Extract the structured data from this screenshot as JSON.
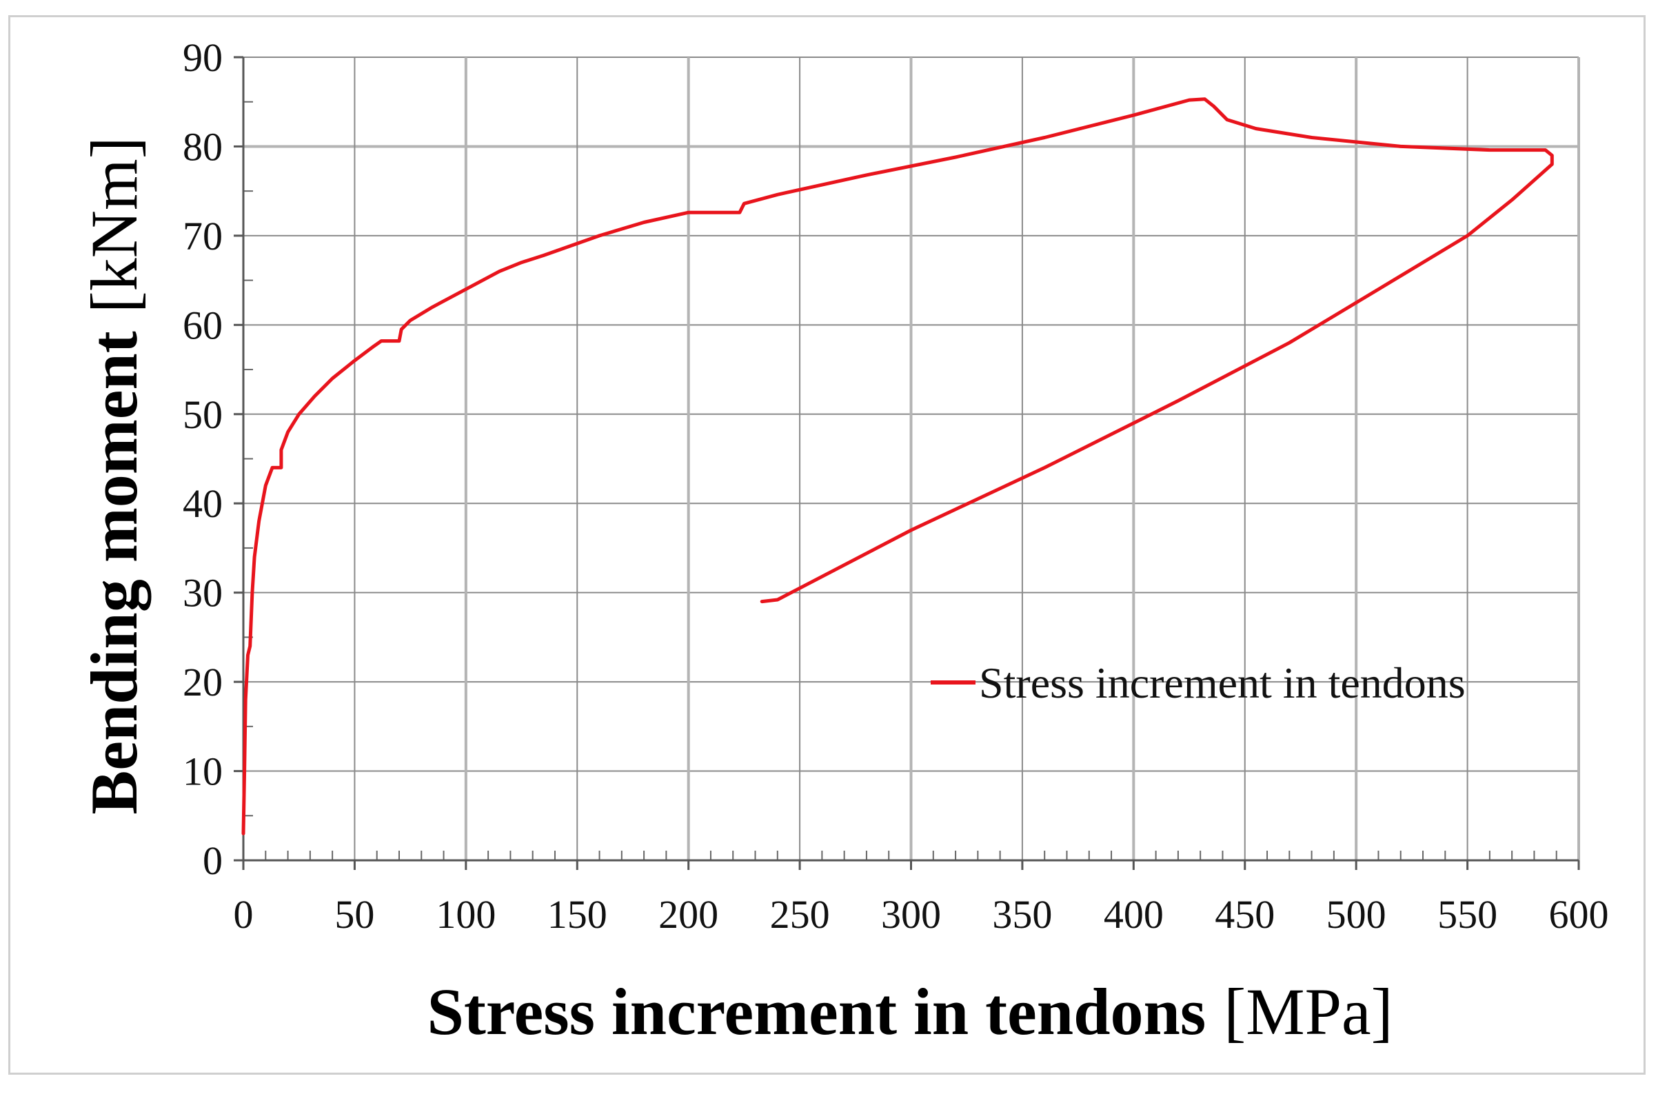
{
  "chart_data": {
    "type": "line",
    "xlabel_bold": "Stress increment in tendons",
    "xlabel_unit": "[MPa]",
    "ylabel_bold": "Bending moment",
    "ylabel_unit": "[kNm]",
    "xlim": [
      0,
      600
    ],
    "ylim": [
      0,
      90
    ],
    "xticks": [
      0,
      50,
      100,
      150,
      200,
      250,
      300,
      350,
      400,
      450,
      500,
      550,
      600
    ],
    "yticks": [
      0,
      10,
      20,
      30,
      40,
      50,
      60,
      70,
      80,
      90
    ],
    "grid": true,
    "legend_position": "right",
    "series": [
      {
        "name": "Stress increment in tendons",
        "color": "#e8141c",
        "points": [
          [
            0,
            3
          ],
          [
            0.5,
            10
          ],
          [
            1,
            18
          ],
          [
            2,
            23
          ],
          [
            3,
            24
          ],
          [
            4,
            30
          ],
          [
            5,
            34
          ],
          [
            7,
            38
          ],
          [
            10,
            42
          ],
          [
            13,
            44
          ],
          [
            17,
            44
          ],
          [
            17,
            46
          ],
          [
            20,
            48
          ],
          [
            25,
            50
          ],
          [
            32,
            52
          ],
          [
            40,
            54
          ],
          [
            50,
            56
          ],
          [
            58,
            57.5
          ],
          [
            62,
            58.2
          ],
          [
            70,
            58.2
          ],
          [
            71,
            59.5
          ],
          [
            75,
            60.5
          ],
          [
            85,
            62
          ],
          [
            100,
            64
          ],
          [
            115,
            66
          ],
          [
            125,
            67
          ],
          [
            135,
            67.8
          ],
          [
            160,
            70
          ],
          [
            180,
            71.5
          ],
          [
            200,
            72.6
          ],
          [
            223,
            72.6
          ],
          [
            225,
            73.6
          ],
          [
            240,
            74.6
          ],
          [
            280,
            76.8
          ],
          [
            320,
            78.8
          ],
          [
            360,
            81
          ],
          [
            400,
            83.5
          ],
          [
            425,
            85.2
          ],
          [
            432,
            85.3
          ],
          [
            436,
            84.5
          ],
          [
            442,
            83
          ],
          [
            455,
            82
          ],
          [
            480,
            81
          ],
          [
            520,
            80
          ],
          [
            560,
            79.6
          ],
          [
            585,
            79.6
          ],
          [
            588,
            79
          ],
          [
            588,
            78
          ],
          [
            570,
            74
          ],
          [
            550,
            70
          ],
          [
            510,
            64
          ],
          [
            470,
            58
          ],
          [
            420,
            51.5
          ],
          [
            360,
            44
          ],
          [
            300,
            37
          ],
          [
            250,
            30.5
          ],
          [
            240,
            29.2
          ],
          [
            233,
            29
          ]
        ]
      }
    ]
  }
}
